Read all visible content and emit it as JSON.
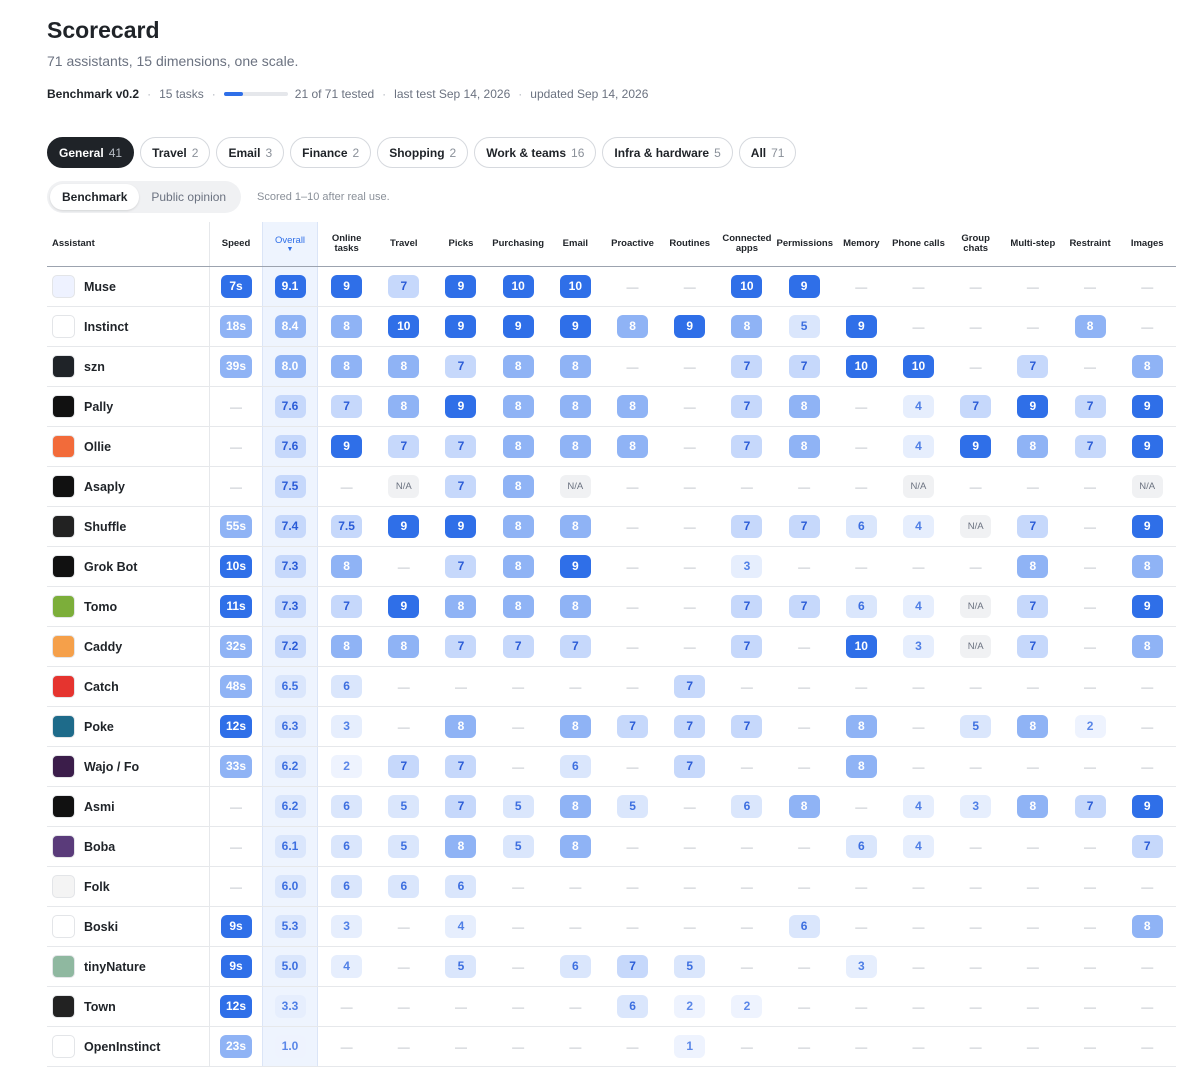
{
  "header": {
    "title": "Scorecard",
    "subtitle": "71 assistants, 15 dimensions, one scale.",
    "version": "Benchmark v0.2",
    "tasks": "15 tasks",
    "tested": "21 of 71 tested",
    "last_test": "last test Sep 14, 2026",
    "updated": "updated Sep 14, 2026"
  },
  "tabs": [
    {
      "label": "General",
      "count": 41
    },
    {
      "label": "Travel",
      "count": 2
    },
    {
      "label": "Email",
      "count": 3
    },
    {
      "label": "Finance",
      "count": 2
    },
    {
      "label": "Shopping",
      "count": 2
    },
    {
      "label": "Work & teams",
      "count": 16
    },
    {
      "label": "Infra & hardware",
      "count": 5
    },
    {
      "label": "All",
      "count": 71
    }
  ],
  "toggle": {
    "options": [
      "Benchmark",
      "Public opinion"
    ],
    "note": "Scored 1–10 after real use."
  },
  "table": {
    "columns": [
      "Assistant",
      "Speed",
      "Overall",
      "Online tasks",
      "Travel",
      "Picks",
      "Purchasing",
      "Email",
      "Proactive",
      "Routines",
      "Connected apps",
      "Permissions",
      "Memory",
      "Phone calls",
      "Group chats",
      "Multi-step",
      "Restraint",
      "Images"
    ],
    "rows": [
      {
        "name": "Muse",
        "speed": "7s",
        "overall": "9.1",
        "scores": [
          "9",
          "7",
          "9",
          "10",
          "10",
          "—",
          "—",
          "10",
          "9",
          "—",
          "—",
          "—",
          "—",
          "—",
          "—"
        ]
      },
      {
        "name": "Instinct",
        "speed": "18s",
        "overall": "8.4",
        "scores": [
          "8",
          "10",
          "9",
          "9",
          "9",
          "8",
          "9",
          "8",
          "5",
          "9",
          "—",
          "—",
          "—",
          "8",
          "—"
        ]
      },
      {
        "name": "szn",
        "speed": "39s",
        "overall": "8.0",
        "scores": [
          "8",
          "8",
          "7",
          "8",
          "8",
          "—",
          "—",
          "7",
          "7",
          "10",
          "10",
          "—",
          "7",
          "—",
          "8"
        ]
      },
      {
        "name": "Pally",
        "speed": "—",
        "overall": "7.6",
        "scores": [
          "7",
          "8",
          "9",
          "8",
          "8",
          "8",
          "—",
          "7",
          "8",
          "—",
          "4",
          "7",
          "9",
          "7",
          "9"
        ]
      },
      {
        "name": "Ollie",
        "speed": "—",
        "overall": "7.6",
        "scores": [
          "9",
          "7",
          "7",
          "8",
          "8",
          "8",
          "—",
          "7",
          "8",
          "—",
          "4",
          "9",
          "8",
          "7",
          "9"
        ]
      },
      {
        "name": "Asaply",
        "speed": "—",
        "overall": "7.5",
        "scores": [
          "—",
          "N/A",
          "7",
          "8",
          "N/A",
          "—",
          "—",
          "—",
          "—",
          "—",
          "N/A",
          "—",
          "—",
          "—",
          "N/A"
        ]
      },
      {
        "name": "Shuffle",
        "speed": "55s",
        "overall": "7.4",
        "scores": [
          "7.5",
          "9",
          "9",
          "8",
          "8",
          "—",
          "—",
          "7",
          "7",
          "6",
          "4",
          "N/A",
          "7",
          "—",
          "9"
        ]
      },
      {
        "name": "Grok Bot",
        "speed": "10s",
        "overall": "7.3",
        "scores": [
          "8",
          "—",
          "7",
          "8",
          "9",
          "—",
          "—",
          "3",
          "—",
          "—",
          "—",
          "—",
          "8",
          "—",
          "8"
        ]
      },
      {
        "name": "Tomo",
        "speed": "11s",
        "overall": "7.3",
        "scores": [
          "7",
          "9",
          "8",
          "8",
          "8",
          "—",
          "—",
          "7",
          "7",
          "6",
          "4",
          "N/A",
          "7",
          "—",
          "9"
        ]
      },
      {
        "name": "Caddy",
        "speed": "32s",
        "overall": "7.2",
        "scores": [
          "8",
          "8",
          "7",
          "7",
          "7",
          "—",
          "—",
          "7",
          "—",
          "10",
          "3",
          "N/A",
          "7",
          "—",
          "8"
        ]
      },
      {
        "name": "Catch",
        "speed": "48s",
        "overall": "6.5",
        "scores": [
          "6",
          "—",
          "—",
          "—",
          "—",
          "—",
          "7",
          "—",
          "—",
          "—",
          "—",
          "—",
          "—",
          "—",
          "—"
        ]
      },
      {
        "name": "Poke",
        "speed": "12s",
        "overall": "6.3",
        "scores": [
          "3",
          "—",
          "8",
          "—",
          "8",
          "7",
          "7",
          "7",
          "—",
          "8",
          "—",
          "5",
          "8",
          "2",
          "—"
        ]
      },
      {
        "name": "Wajo / Fo",
        "speed": "33s",
        "overall": "6.2",
        "scores": [
          "2",
          "7",
          "7",
          "—",
          "6",
          "—",
          "7",
          "—",
          "—",
          "8",
          "—",
          "—",
          "—",
          "—",
          "—"
        ]
      },
      {
        "name": "Asmi",
        "speed": "—",
        "overall": "6.2",
        "scores": [
          "6",
          "5",
          "7",
          "5",
          "8",
          "5",
          "—",
          "6",
          "8",
          "—",
          "4",
          "3",
          "8",
          "7",
          "9"
        ]
      },
      {
        "name": "Boba",
        "speed": "—",
        "overall": "6.1",
        "scores": [
          "6",
          "5",
          "8",
          "5",
          "8",
          "—",
          "—",
          "—",
          "—",
          "6",
          "4",
          "—",
          "—",
          "—",
          "7"
        ]
      },
      {
        "name": "Folk",
        "speed": "—",
        "overall": "6.0",
        "scores": [
          "6",
          "6",
          "6",
          "—",
          "—",
          "—",
          "—",
          "—",
          "—",
          "—",
          "—",
          "—",
          "—",
          "—",
          "—"
        ]
      },
      {
        "name": "Boski",
        "speed": "9s",
        "overall": "5.3",
        "scores": [
          "3",
          "—",
          "4",
          "—",
          "—",
          "—",
          "—",
          "—",
          "6",
          "—",
          "—",
          "—",
          "—",
          "—",
          "8"
        ]
      },
      {
        "name": "tinyNature",
        "speed": "9s",
        "overall": "5.0",
        "scores": [
          "4",
          "—",
          "5",
          "—",
          "6",
          "7",
          "5",
          "—",
          "—",
          "3",
          "—",
          "—",
          "—",
          "—",
          "—"
        ]
      },
      {
        "name": "Town",
        "speed": "12s",
        "overall": "3.3",
        "scores": [
          "—",
          "—",
          "—",
          "—",
          "—",
          "6",
          "2",
          "2",
          "—",
          "—",
          "—",
          "—",
          "—",
          "—",
          "—"
        ]
      },
      {
        "name": "OpenInstinct",
        "speed": "23s",
        "overall": "1.0",
        "scores": [
          "—",
          "—",
          "—",
          "—",
          "—",
          "—",
          "1",
          "—",
          "—",
          "—",
          "—",
          "—",
          "—",
          "—",
          "—"
        ]
      }
    ]
  }
}
